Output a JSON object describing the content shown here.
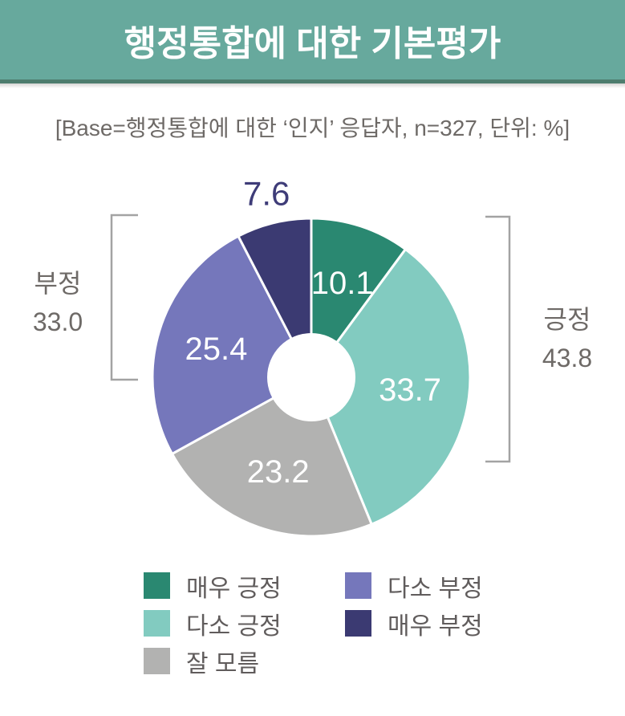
{
  "header": {
    "title": "행정통합에 대한 기본평가",
    "base_note": "[Base=행정통합에 대한 ‘인지’ 응답자, n=327, 단위: %]"
  },
  "chart_data": {
    "type": "pie",
    "subtype": "donut",
    "title": "행정통합에 대한 기본평가",
    "base_note": "[Base=행정통합에 대한 ‘인지’ 응답자, n=327, 단위: %]",
    "n": 327,
    "unit": "%",
    "start_angle_deg_from_north": 0,
    "direction": "clockwise",
    "segments": [
      {
        "label": "매우 긍정",
        "value": 10.1,
        "display": "10.1",
        "color": "#2a8871",
        "value_label_color": "#ffffff",
        "label_outside": false
      },
      {
        "label": "다소 긍정",
        "value": 33.7,
        "display": "33.7",
        "color": "#82cbc0",
        "value_label_color": "#ffffff",
        "label_outside": false
      },
      {
        "label": "잘 모름",
        "value": 23.2,
        "display": "23.2",
        "color": "#b2b2b1",
        "value_label_color": "#ffffff",
        "label_outside": false
      },
      {
        "label": "다소 부정",
        "value": 25.4,
        "display": "25.4",
        "color": "#7577bb",
        "value_label_color": "#ffffff",
        "label_outside": false
      },
      {
        "label": "매우 부정",
        "value": 7.6,
        "display": "7.6",
        "color": "#3b3a72",
        "value_label_color": "#3e3c78",
        "label_outside": true
      }
    ],
    "groups": [
      {
        "label": "부정",
        "value": 33.0,
        "display": "33.0",
        "side": "left"
      },
      {
        "label": "긍정",
        "value": 43.8,
        "display": "43.8",
        "side": "right"
      }
    ],
    "legend_position": "bottom",
    "bracket_color": "#a3a3a3"
  }
}
